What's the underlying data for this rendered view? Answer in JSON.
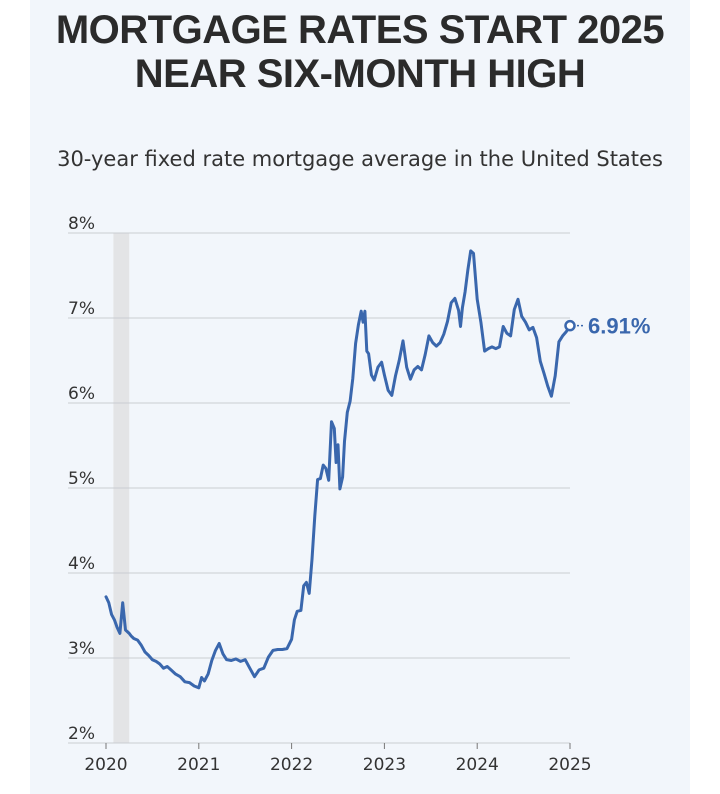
{
  "header": {
    "title": "MORTGAGE RATES START 2025 NEAR SIX-MONTH HIGH",
    "subtitle": "30-year fixed rate mortgage average in the United States"
  },
  "colors": {
    "line": "#3a67ad",
    "grid": "#c9cdd2",
    "shade": "#e3e4e6",
    "axis_text": "#333333",
    "background": "#f2f6fb"
  },
  "chart_data": {
    "type": "line",
    "title": "MORTGAGE RATES START 2025 NEAR SIX-MONTH HIGH",
    "subtitle": "30-year fixed rate mortgage average in the United States",
    "xlabel": "",
    "ylabel": "",
    "xlim": [
      2020,
      2025
    ],
    "ylim": [
      2,
      8
    ],
    "grid": "horizontal",
    "x_ticks": [
      2020,
      2021,
      2022,
      2023,
      2024,
      2025
    ],
    "x_tick_labels": [
      "2020",
      "2021",
      "2022",
      "2023",
      "2024",
      "2025"
    ],
    "y_ticks": [
      2,
      3,
      4,
      5,
      6,
      7,
      8
    ],
    "y_tick_labels": [
      "2%",
      "3%",
      "4%",
      "5%",
      "6%",
      "7%",
      "8%"
    ],
    "shaded_range": [
      2020.08,
      2020.25
    ],
    "end_label": "6.91%",
    "series": [
      {
        "name": "30-year fixed rate mortgage average",
        "x": [
          2020.0,
          2020.03,
          2020.06,
          2020.09,
          2020.12,
          2020.15,
          2020.18,
          2020.21,
          2020.23,
          2020.25,
          2020.27,
          2020.3,
          2020.34,
          2020.38,
          2020.42,
          2020.46,
          2020.5,
          2020.54,
          2020.58,
          2020.62,
          2020.66,
          2020.7,
          2020.75,
          2020.8,
          2020.85,
          2020.9,
          2020.95,
          2021.0,
          2021.03,
          2021.06,
          2021.1,
          2021.14,
          2021.18,
          2021.22,
          2021.26,
          2021.3,
          2021.35,
          2021.4,
          2021.45,
          2021.5,
          2021.55,
          2021.6,
          2021.65,
          2021.7,
          2021.75,
          2021.8,
          2021.85,
          2021.9,
          2021.95,
          2022.0,
          2022.03,
          2022.06,
          2022.1,
          2022.13,
          2022.16,
          2022.19,
          2022.22,
          2022.25,
          2022.28,
          2022.31,
          2022.34,
          2022.37,
          2022.4,
          2022.43,
          2022.46,
          2022.48,
          2022.5,
          2022.52,
          2022.55,
          2022.57,
          2022.6,
          2022.63,
          2022.66,
          2022.69,
          2022.72,
          2022.75,
          2022.77,
          2022.79,
          2022.81,
          2022.83,
          2022.86,
          2022.89,
          2022.93,
          2022.97,
          2023.0,
          2023.04,
          2023.08,
          2023.12,
          2023.16,
          2023.2,
          2023.24,
          2023.28,
          2023.32,
          2023.36,
          2023.4,
          2023.44,
          2023.48,
          2023.52,
          2023.56,
          2023.6,
          2023.64,
          2023.68,
          2023.72,
          2023.76,
          2023.8,
          2023.82,
          2023.84,
          2023.87,
          2023.9,
          2023.93,
          2023.96,
          2024.0,
          2024.04,
          2024.08,
          2024.12,
          2024.16,
          2024.2,
          2024.24,
          2024.28,
          2024.32,
          2024.36,
          2024.4,
          2024.44,
          2024.48,
          2024.52,
          2024.56,
          2024.6,
          2024.64,
          2024.68,
          2024.72,
          2024.76,
          2024.8,
          2024.84,
          2024.88,
          2024.92,
          2024.96,
          2025.0
        ],
        "values": [
          3.72,
          3.65,
          3.51,
          3.45,
          3.36,
          3.29,
          3.65,
          3.33,
          3.31,
          3.29,
          3.26,
          3.23,
          3.21,
          3.15,
          3.07,
          3.03,
          2.98,
          2.96,
          2.93,
          2.88,
          2.9,
          2.86,
          2.81,
          2.78,
          2.72,
          2.71,
          2.67,
          2.65,
          2.77,
          2.73,
          2.81,
          2.97,
          3.09,
          3.17,
          3.05,
          2.98,
          2.97,
          2.99,
          2.96,
          2.98,
          2.88,
          2.78,
          2.86,
          2.88,
          3.01,
          3.09,
          3.1,
          3.1,
          3.11,
          3.22,
          3.45,
          3.55,
          3.56,
          3.85,
          3.89,
          3.76,
          4.16,
          4.67,
          5.1,
          5.11,
          5.27,
          5.23,
          5.09,
          5.78,
          5.7,
          5.3,
          5.51,
          4.99,
          5.13,
          5.55,
          5.89,
          6.02,
          6.29,
          6.7,
          6.92,
          7.08,
          6.95,
          7.08,
          6.61,
          6.58,
          6.33,
          6.27,
          6.42,
          6.48,
          6.33,
          6.15,
          6.09,
          6.32,
          6.5,
          6.73,
          6.42,
          6.28,
          6.39,
          6.43,
          6.39,
          6.57,
          6.79,
          6.71,
          6.67,
          6.71,
          6.81,
          6.96,
          7.18,
          7.23,
          7.09,
          6.9,
          7.12,
          7.31,
          7.57,
          7.79,
          7.76,
          7.22,
          6.95,
          6.61,
          6.64,
          6.66,
          6.64,
          6.66,
          6.9,
          6.82,
          6.79,
          7.1,
          7.22,
          7.02,
          6.95,
          6.86,
          6.89,
          6.77,
          6.49,
          6.35,
          6.2,
          6.08,
          6.32,
          6.72,
          6.79,
          6.84,
          6.91
        ]
      }
    ]
  }
}
